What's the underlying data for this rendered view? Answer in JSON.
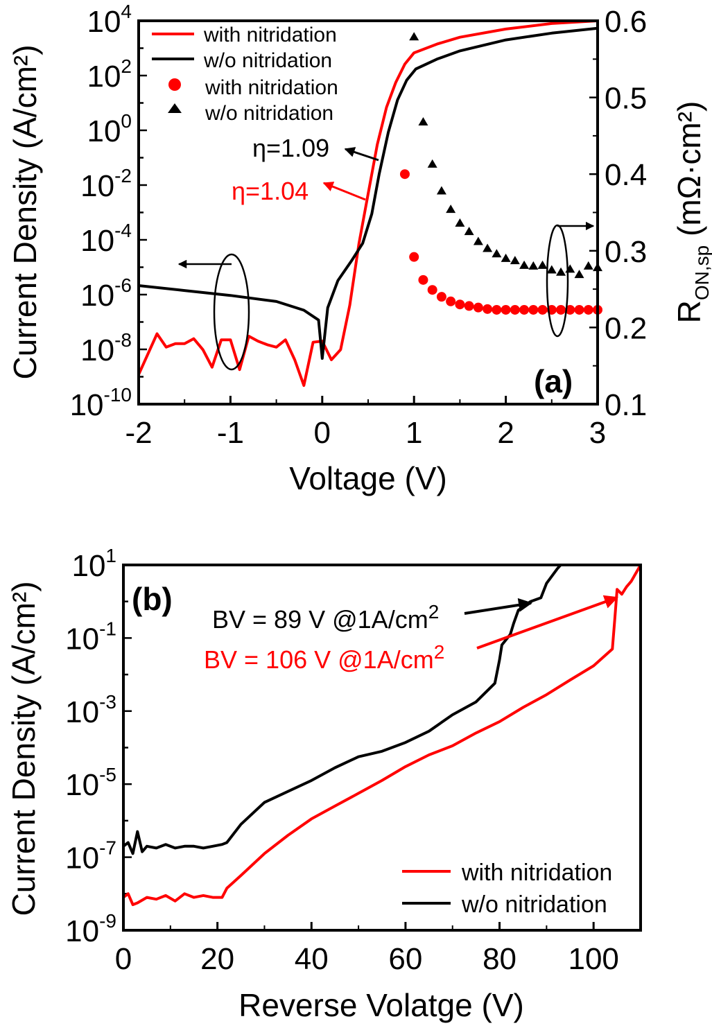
{
  "colors": {
    "with": "#ff0000",
    "without": "#000000"
  },
  "chart_data": [
    {
      "type": "line",
      "panel_label": "(a)",
      "xlabel": "Voltage (V)",
      "ylabel": "Current Density (A/cm²)",
      "y2label_main": "R",
      "y2label_sub": "ON,sp",
      "y2label_unit": " (mΩ·cm²)",
      "xlim": [
        -2,
        3
      ],
      "ylim_log10": [
        -10,
        4
      ],
      "y2lim": [
        0.1,
        0.6
      ],
      "x_ticks": [
        "-2",
        "-1",
        "0",
        "1",
        "2",
        "3"
      ],
      "y_tick_exponents": [
        "-10",
        "-8",
        "-6",
        "-4",
        "-2",
        "0",
        "2",
        "4"
      ],
      "y2_ticks": [
        "0.1",
        "0.2",
        "0.3",
        "0.4",
        "0.5",
        "0.6"
      ],
      "legend": {
        "placement": "top-left",
        "entries": [
          "with nitridation",
          "w/o  nitridation",
          "with nitridation",
          "w/o  nitridation"
        ]
      },
      "annotations": {
        "eta_without": "η=1.09",
        "eta_with": "η=1.04"
      },
      "series": [
        {
          "name": "with nitridation",
          "kind": "line",
          "axis": "left",
          "color": "#ff0000",
          "x": [
            -2,
            -1.8,
            -1.7,
            -1.6,
            -1.5,
            -1.4,
            -1.3,
            -1.2,
            -1.1,
            -1.0,
            -0.9,
            -0.8,
            -0.7,
            -0.6,
            -0.5,
            -0.4,
            -0.3,
            -0.2,
            -0.1,
            0.0,
            0.1,
            0.2,
            0.3,
            0.4,
            0.5,
            0.6,
            0.7,
            0.8,
            0.9,
            1.0,
            1.25,
            1.5,
            2.0,
            2.5,
            3.0
          ],
          "log10_y": [
            -8.92,
            -7.43,
            -7.92,
            -7.79,
            -7.79,
            -7.61,
            -8.01,
            -8.65,
            -7.65,
            -7.65,
            -8.74,
            -7.52,
            -7.7,
            -7.83,
            -7.92,
            -7.65,
            -8.38,
            -9.32,
            -7.74,
            -7.7,
            -8.38,
            -8.01,
            -6.39,
            -4.13,
            -2.32,
            -0.52,
            0.84,
            1.74,
            2.42,
            2.83,
            3.15,
            3.4,
            3.7,
            3.9,
            4.0
          ]
        },
        {
          "name": "w/o  nitridation",
          "kind": "line",
          "axis": "left",
          "color": "#000000",
          "x": [
            -2,
            -1.5,
            -1.0,
            -0.5,
            -0.2,
            -0.04,
            0.0,
            0.06,
            0.17,
            0.32,
            0.44,
            0.54,
            0.62,
            0.72,
            0.82,
            0.92,
            1.02,
            1.25,
            1.5,
            2.0,
            2.5,
            3.0
          ],
          "log10_y": [
            -5.67,
            -5.85,
            -6.03,
            -6.25,
            -6.57,
            -6.93,
            -8.33,
            -6.48,
            -5.49,
            -4.76,
            -4.13,
            -3.05,
            -1.6,
            -0.07,
            1.11,
            1.83,
            2.24,
            2.6,
            2.9,
            3.3,
            3.55,
            3.73
          ]
        },
        {
          "name": "with nitridation",
          "kind": "scatter",
          "marker": "circle",
          "axis": "right",
          "color": "#ff0000",
          "x": [
            0.9,
            1.0,
            1.1,
            1.2,
            1.3,
            1.4,
            1.5,
            1.6,
            1.7,
            1.8,
            1.9,
            2.0,
            2.1,
            2.2,
            2.3,
            2.4,
            2.5,
            2.6,
            2.7,
            2.8,
            2.9,
            3.0
          ],
          "y": [
            0.4,
            0.292,
            0.262,
            0.249,
            0.24,
            0.234,
            0.23,
            0.228,
            0.226,
            0.224,
            0.223,
            0.223,
            0.223,
            0.223,
            0.223,
            0.223,
            0.223,
            0.223,
            0.223,
            0.223,
            0.223,
            0.223
          ]
        },
        {
          "name": "w/o  nitridation",
          "kind": "scatter",
          "marker": "triangle",
          "axis": "right",
          "color": "#000000",
          "x": [
            1.0,
            1.1,
            1.2,
            1.3,
            1.4,
            1.5,
            1.6,
            1.7,
            1.8,
            1.9,
            2.0,
            2.1,
            2.2,
            2.3,
            2.4,
            2.5,
            2.6,
            2.7,
            2.8,
            2.9,
            3.0
          ],
          "y": [
            0.579,
            0.468,
            0.413,
            0.378,
            0.354,
            0.336,
            0.325,
            0.312,
            0.303,
            0.296,
            0.29,
            0.287,
            0.281,
            0.28,
            0.281,
            0.275,
            0.272,
            0.276,
            0.269,
            0.28,
            0.278
          ]
        }
      ]
    },
    {
      "type": "line",
      "panel_label": "(b)",
      "xlabel": "Reverse Volatge (V)",
      "ylabel": "Current Density (A/cm²)",
      "xlim": [
        0,
        110
      ],
      "ylim_log10": [
        -9,
        1
      ],
      "x_ticks": [
        "0",
        "20",
        "40",
        "60",
        "80",
        "100"
      ],
      "y_tick_exponents": [
        "-9",
        "-7",
        "-5",
        "-3",
        "-1",
        "1"
      ],
      "legend": {
        "placement": "bottom-right",
        "entries": [
          "with nitridation",
          "w/o  nitridation"
        ]
      },
      "annotations": {
        "bv_without_main": "BV = 89 V @1A/cm",
        "bv_without_sup": "2",
        "bv_with_main": "BV = 106 V @1A/cm",
        "bv_with_sup": "2"
      },
      "series": [
        {
          "name": "with nitridation",
          "color": "#ff0000",
          "x": [
            0,
            1,
            2,
            3,
            5,
            7,
            9,
            11,
            13,
            15,
            17,
            19,
            21,
            22,
            25,
            30,
            35,
            40,
            45,
            50,
            55,
            60,
            65,
            70,
            75,
            80,
            85,
            90,
            95,
            100,
            104,
            104.5,
            105,
            106,
            107,
            108,
            110
          ],
          "log10_y": [
            -8.1,
            -8.0,
            -8.3,
            -8.25,
            -8.1,
            -8.15,
            -8.05,
            -8.2,
            -8.0,
            -8.1,
            -8.05,
            -8.1,
            -8.1,
            -7.85,
            -7.5,
            -6.9,
            -6.4,
            -5.95,
            -5.6,
            -5.25,
            -4.9,
            -4.52,
            -4.2,
            -3.95,
            -3.6,
            -3.29,
            -2.9,
            -2.55,
            -2.15,
            -1.76,
            -1.3,
            -0.5,
            0.33,
            0.2,
            0.4,
            0.55,
            1.0
          ]
        },
        {
          "name": "w/o  nitridation",
          "color": "#000000",
          "x": [
            0,
            1,
            2,
            3,
            4,
            5,
            7,
            9,
            11,
            13,
            15,
            17,
            19,
            21,
            22,
            25,
            30,
            35,
            40,
            45,
            50,
            55,
            60,
            65,
            70,
            75,
            79,
            80,
            80.5,
            82.3,
            83,
            84,
            86.6,
            88.8,
            90,
            92.3,
            93
          ],
          "log10_y": [
            -6.7,
            -6.6,
            -6.9,
            -6.3,
            -6.85,
            -6.7,
            -6.75,
            -6.65,
            -6.75,
            -6.7,
            -6.7,
            -6.75,
            -6.7,
            -6.65,
            -6.6,
            -6.1,
            -5.5,
            -5.2,
            -4.9,
            -4.55,
            -4.25,
            -4.1,
            -3.86,
            -3.55,
            -3.1,
            -2.75,
            -2.24,
            -1.6,
            -1.19,
            -0.9,
            -0.6,
            -0.24,
            0.0,
            0.1,
            0.5,
            0.9,
            1.0
          ]
        }
      ]
    }
  ]
}
